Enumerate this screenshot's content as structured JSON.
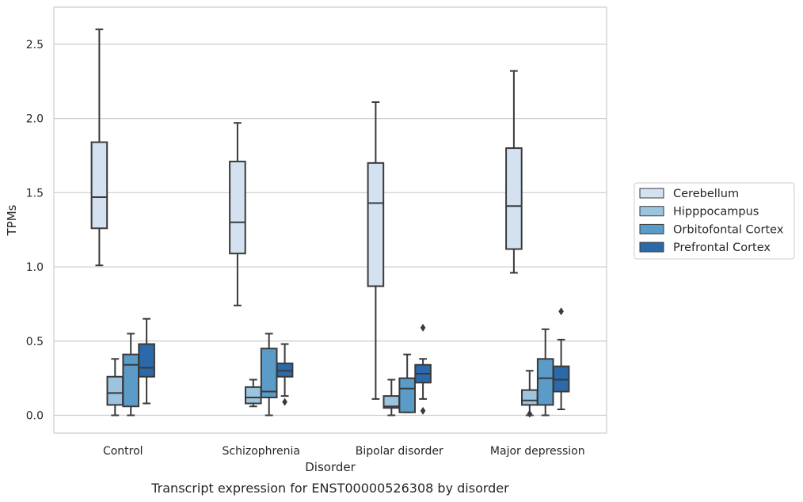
{
  "chart_data": {
    "type": "box",
    "title": "",
    "caption": "Transcript expression for ENST00000526308 by disorder",
    "xlabel": "Disorder",
    "ylabel": "TPMs",
    "ylim": [
      -0.12,
      2.75
    ],
    "yticks": [
      0.0,
      0.5,
      1.0,
      1.5,
      2.0,
      2.5
    ],
    "ytick_labels": [
      "0.0",
      "0.5",
      "1.0",
      "1.5",
      "2.0",
      "2.5"
    ],
    "grid": "horizontal",
    "legend_position": "right",
    "categories": [
      "Control",
      "Schizophrenia",
      "Bipolar disorder",
      "Major depression"
    ],
    "series": [
      {
        "name": "Cerebellum",
        "color": "#d3e1f1",
        "boxes": [
          {
            "whisker_low": 1.01,
            "q1": 1.26,
            "median": 1.47,
            "q3": 1.84,
            "whisker_high": 2.6,
            "outliers": []
          },
          {
            "whisker_low": 0.74,
            "q1": 1.09,
            "median": 1.3,
            "q3": 1.71,
            "whisker_high": 1.97,
            "outliers": []
          },
          {
            "whisker_low": 0.11,
            "q1": 0.87,
            "median": 1.43,
            "q3": 1.7,
            "whisker_high": 2.11,
            "outliers": []
          },
          {
            "whisker_low": 0.96,
            "q1": 1.12,
            "median": 1.41,
            "q3": 1.8,
            "whisker_high": 2.32,
            "outliers": []
          }
        ]
      },
      {
        "name": "Hipppocampus",
        "color": "#9dc4de",
        "boxes": [
          {
            "whisker_low": 0.0,
            "q1": 0.07,
            "median": 0.15,
            "q3": 0.26,
            "whisker_high": 0.38,
            "outliers": []
          },
          {
            "whisker_low": 0.06,
            "q1": 0.08,
            "median": 0.12,
            "q3": 0.19,
            "whisker_high": 0.24,
            "outliers": []
          },
          {
            "whisker_low": 0.0,
            "q1": 0.05,
            "median": 0.06,
            "q3": 0.13,
            "whisker_high": 0.24,
            "outliers": []
          },
          {
            "whisker_low": 0.0,
            "q1": 0.07,
            "median": 0.1,
            "q3": 0.17,
            "whisker_high": 0.3,
            "outliers": [
              0.01
            ]
          }
        ]
      },
      {
        "name": "Orbitofontal Cortex",
        "color": "#5b9bc8",
        "boxes": [
          {
            "whisker_low": 0.0,
            "q1": 0.06,
            "median": 0.34,
            "q3": 0.41,
            "whisker_high": 0.55,
            "outliers": []
          },
          {
            "whisker_low": 0.0,
            "q1": 0.12,
            "median": 0.16,
            "q3": 0.45,
            "whisker_high": 0.55,
            "outliers": []
          },
          {
            "whisker_low": 0.02,
            "q1": 0.02,
            "median": 0.18,
            "q3": 0.25,
            "whisker_high": 0.41,
            "outliers": []
          },
          {
            "whisker_low": 0.0,
            "q1": 0.07,
            "median": 0.25,
            "q3": 0.38,
            "whisker_high": 0.58,
            "outliers": []
          }
        ]
      },
      {
        "name": "Prefrontal Cortex",
        "color": "#2b69a8",
        "boxes": [
          {
            "whisker_low": 0.08,
            "q1": 0.26,
            "median": 0.32,
            "q3": 0.48,
            "whisker_high": 0.65,
            "outliers": []
          },
          {
            "whisker_low": 0.13,
            "q1": 0.26,
            "median": 0.3,
            "q3": 0.35,
            "whisker_high": 0.48,
            "outliers": [
              0.09
            ]
          },
          {
            "whisker_low": 0.11,
            "q1": 0.22,
            "median": 0.28,
            "q3": 0.34,
            "whisker_high": 0.38,
            "outliers": [
              0.59,
              0.03
            ]
          },
          {
            "whisker_low": 0.04,
            "q1": 0.16,
            "median": 0.24,
            "q3": 0.33,
            "whisker_high": 0.51,
            "outliers": [
              0.7
            ]
          }
        ]
      }
    ]
  }
}
